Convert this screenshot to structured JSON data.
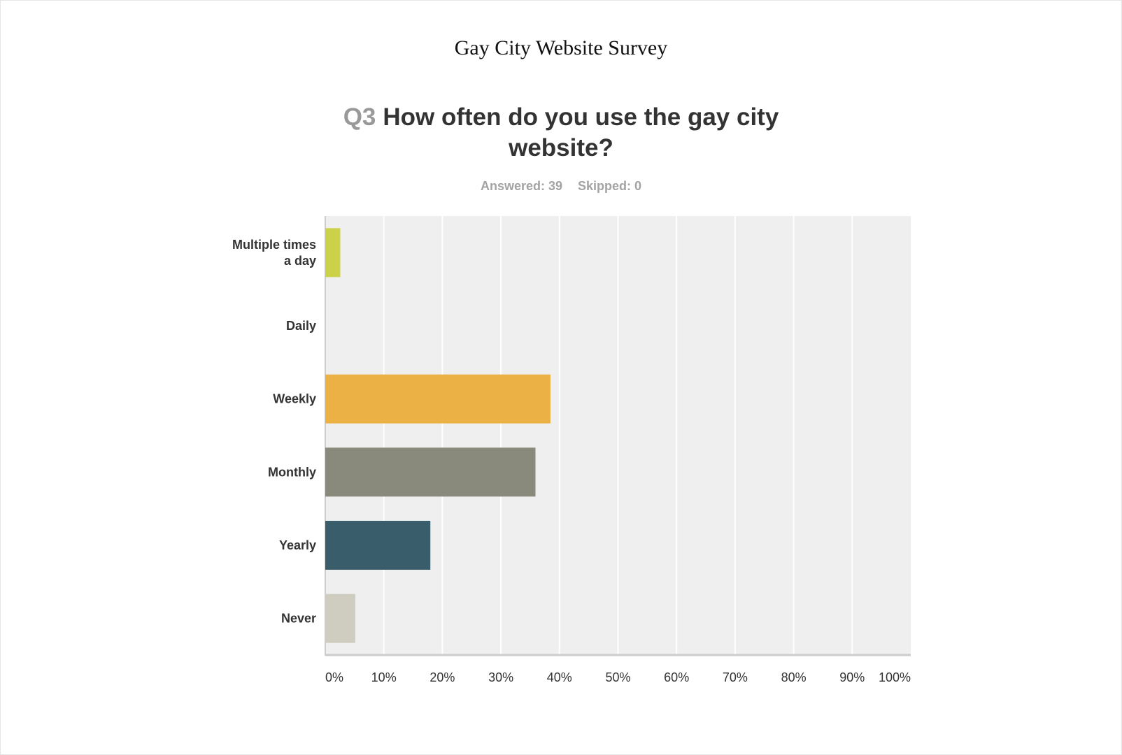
{
  "survey_title": "Gay City Website Survey",
  "question": {
    "number": "Q3",
    "text": "How often do you use the gay city website?"
  },
  "stats": {
    "answered": "Answered: 39",
    "skipped": "Skipped: 0"
  },
  "chart_data": {
    "type": "bar",
    "orientation": "horizontal",
    "categories": [
      "Multiple times a day",
      "Daily",
      "Weekly",
      "Monthly",
      "Yearly",
      "Never"
    ],
    "values": [
      2.56,
      0,
      38.46,
      35.9,
      17.95,
      5.13
    ],
    "colors": [
      "#cbd24a",
      "#b8cc4e",
      "#ecb145",
      "#898a7b",
      "#3a5d6c",
      "#cfcdc0"
    ],
    "xlim": [
      0,
      100
    ],
    "x_ticks": [
      "0%",
      "10%",
      "20%",
      "30%",
      "40%",
      "50%",
      "60%",
      "70%",
      "80%",
      "90%",
      "100%"
    ],
    "grid": true,
    "plot_background": "#efefef",
    "title": "",
    "xlabel": "",
    "ylabel": ""
  }
}
